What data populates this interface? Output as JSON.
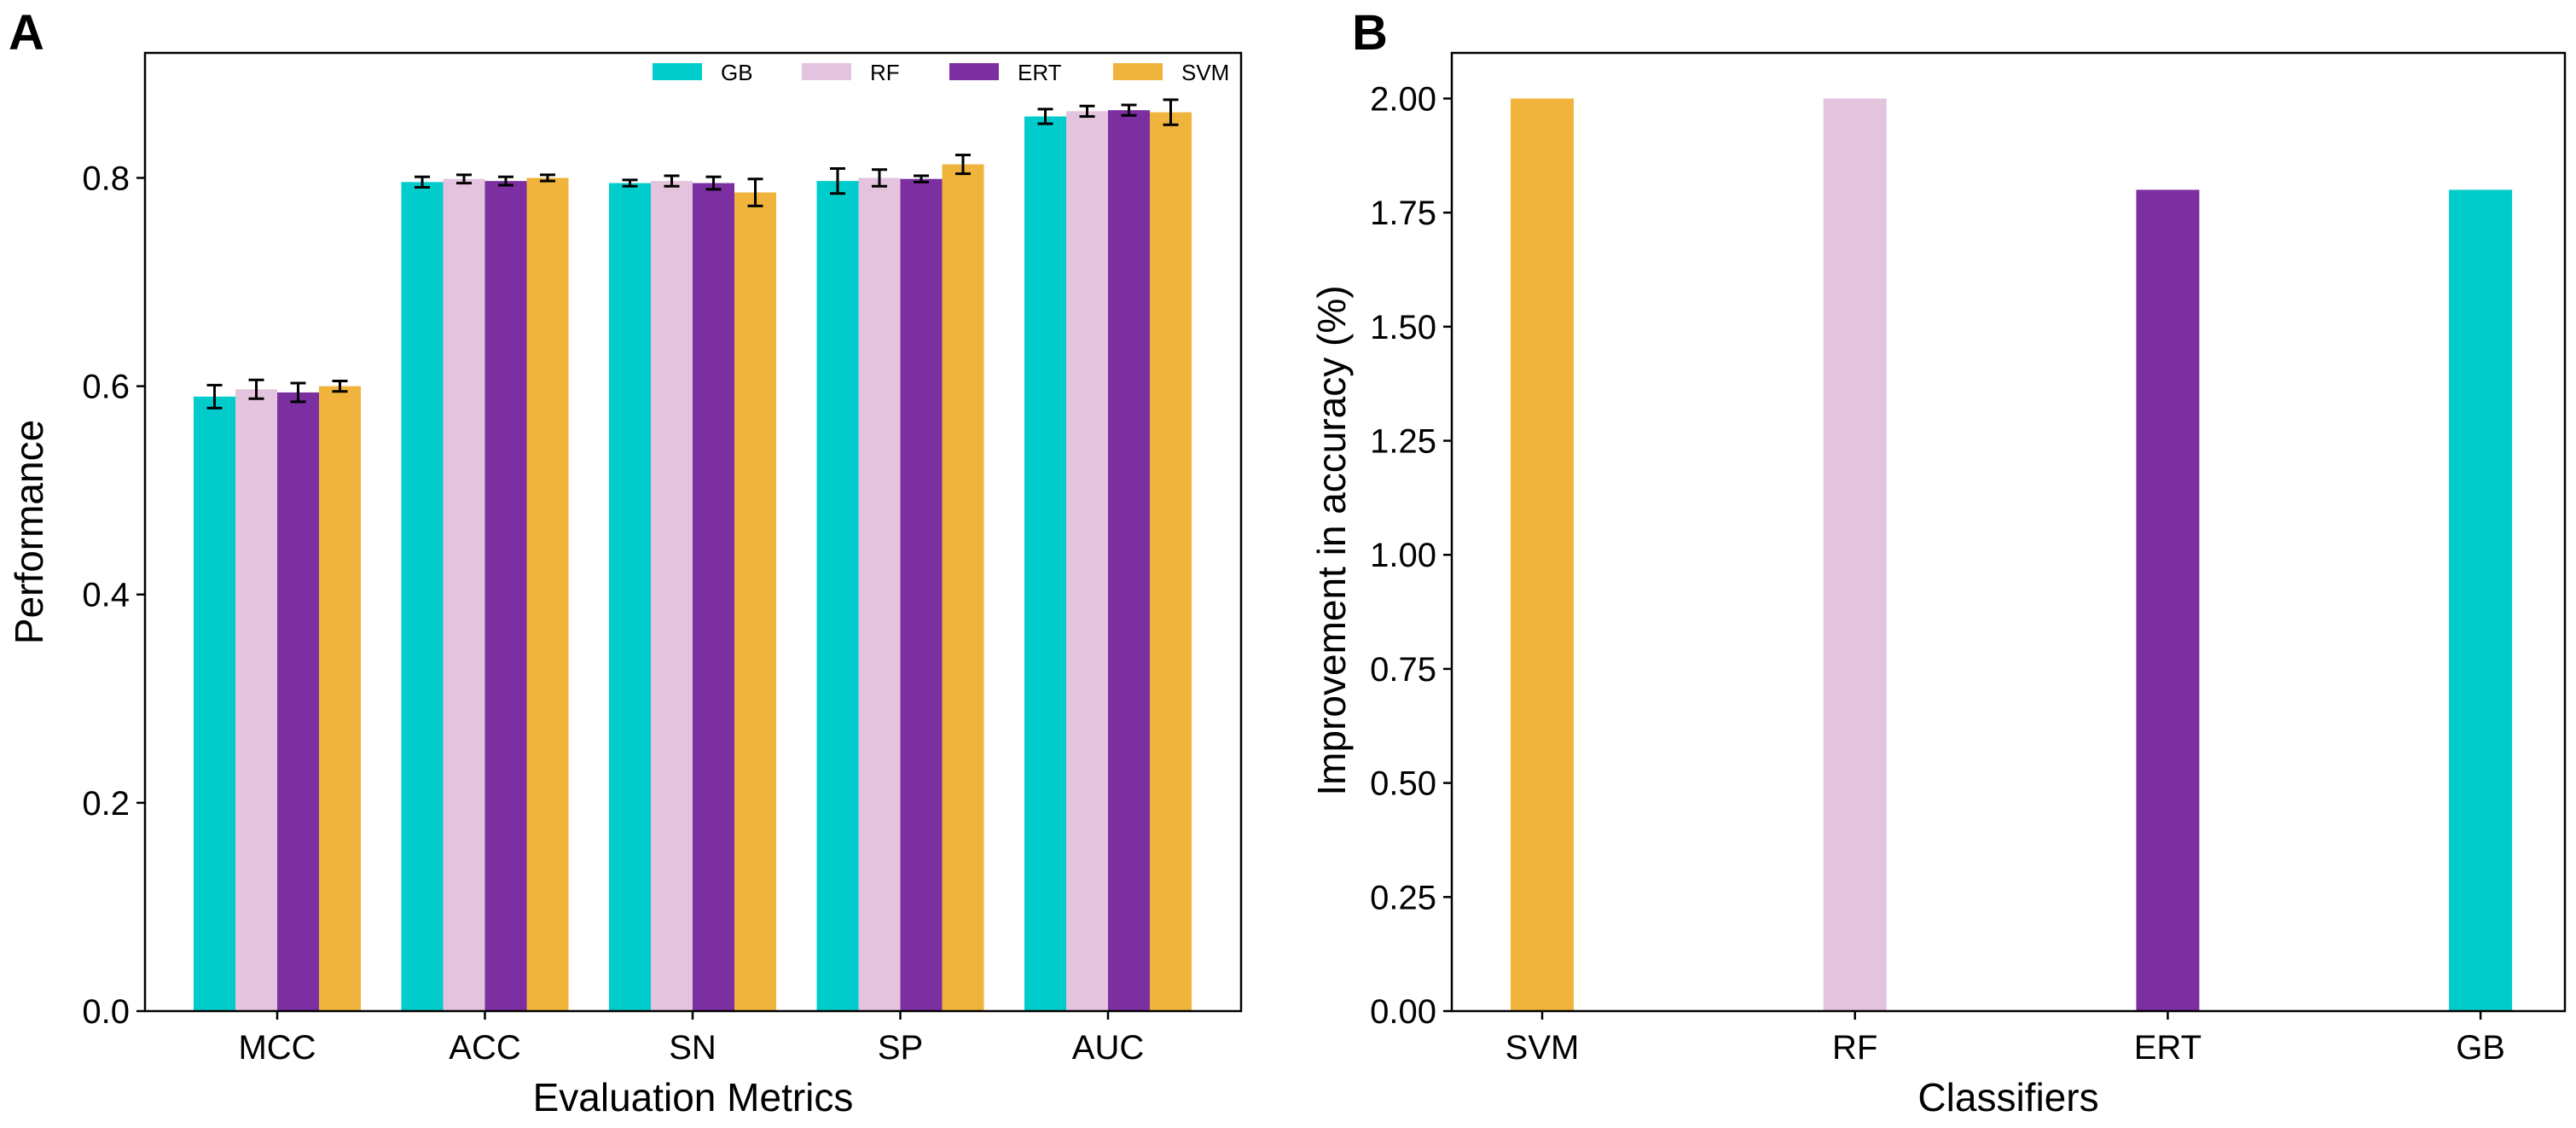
{
  "colors": {
    "GB": "#00CCCC",
    "RF": "#E3C3DE",
    "ERT": "#7B2FA0",
    "SVM": "#F0B43C"
  },
  "chart_data": [
    {
      "type": "bar",
      "panel": "A",
      "categories": [
        "MCC",
        "ACC",
        "SN",
        "SP",
        "AUC"
      ],
      "series": [
        {
          "name": "GB",
          "values": [
            0.59,
            0.796,
            0.795,
            0.797,
            0.859
          ],
          "errors": [
            0.011,
            0.005,
            0.003,
            0.012,
            0.007
          ]
        },
        {
          "name": "RF",
          "values": [
            0.597,
            0.799,
            0.797,
            0.8,
            0.864
          ],
          "errors": [
            0.009,
            0.004,
            0.005,
            0.008,
            0.005
          ]
        },
        {
          "name": "ERT",
          "values": [
            0.594,
            0.797,
            0.795,
            0.799,
            0.865
          ],
          "errors": [
            0.009,
            0.004,
            0.006,
            0.003,
            0.005
          ]
        },
        {
          "name": "SVM",
          "values": [
            0.6,
            0.8,
            0.786,
            0.813,
            0.863
          ],
          "errors": [
            0.005,
            0.003,
            0.013,
            0.009,
            0.012
          ]
        }
      ],
      "xlabel": "Evaluation Metrics",
      "ylabel": "Performance",
      "ylim": [
        0,
        0.92
      ],
      "yticks": [
        "0.0",
        "0.2",
        "0.4",
        "0.6",
        "0.8"
      ],
      "legend_position": "top-right",
      "grid": false
    },
    {
      "type": "bar",
      "panel": "B",
      "categories": [
        "SVM",
        "RF",
        "ERT",
        "GB"
      ],
      "values": [
        2.0,
        2.0,
        1.8,
        1.8
      ],
      "bar_colors": [
        "SVM",
        "RF",
        "ERT",
        "GB"
      ],
      "xlabel": "Classifiers",
      "ylabel": "Improvement in accuracy (%)",
      "ylim": [
        0,
        2.1
      ],
      "yticks": [
        "0.00",
        "0.25",
        "0.50",
        "0.75",
        "1.00",
        "1.25",
        "1.50",
        "1.75",
        "2.00"
      ],
      "grid": false
    }
  ]
}
